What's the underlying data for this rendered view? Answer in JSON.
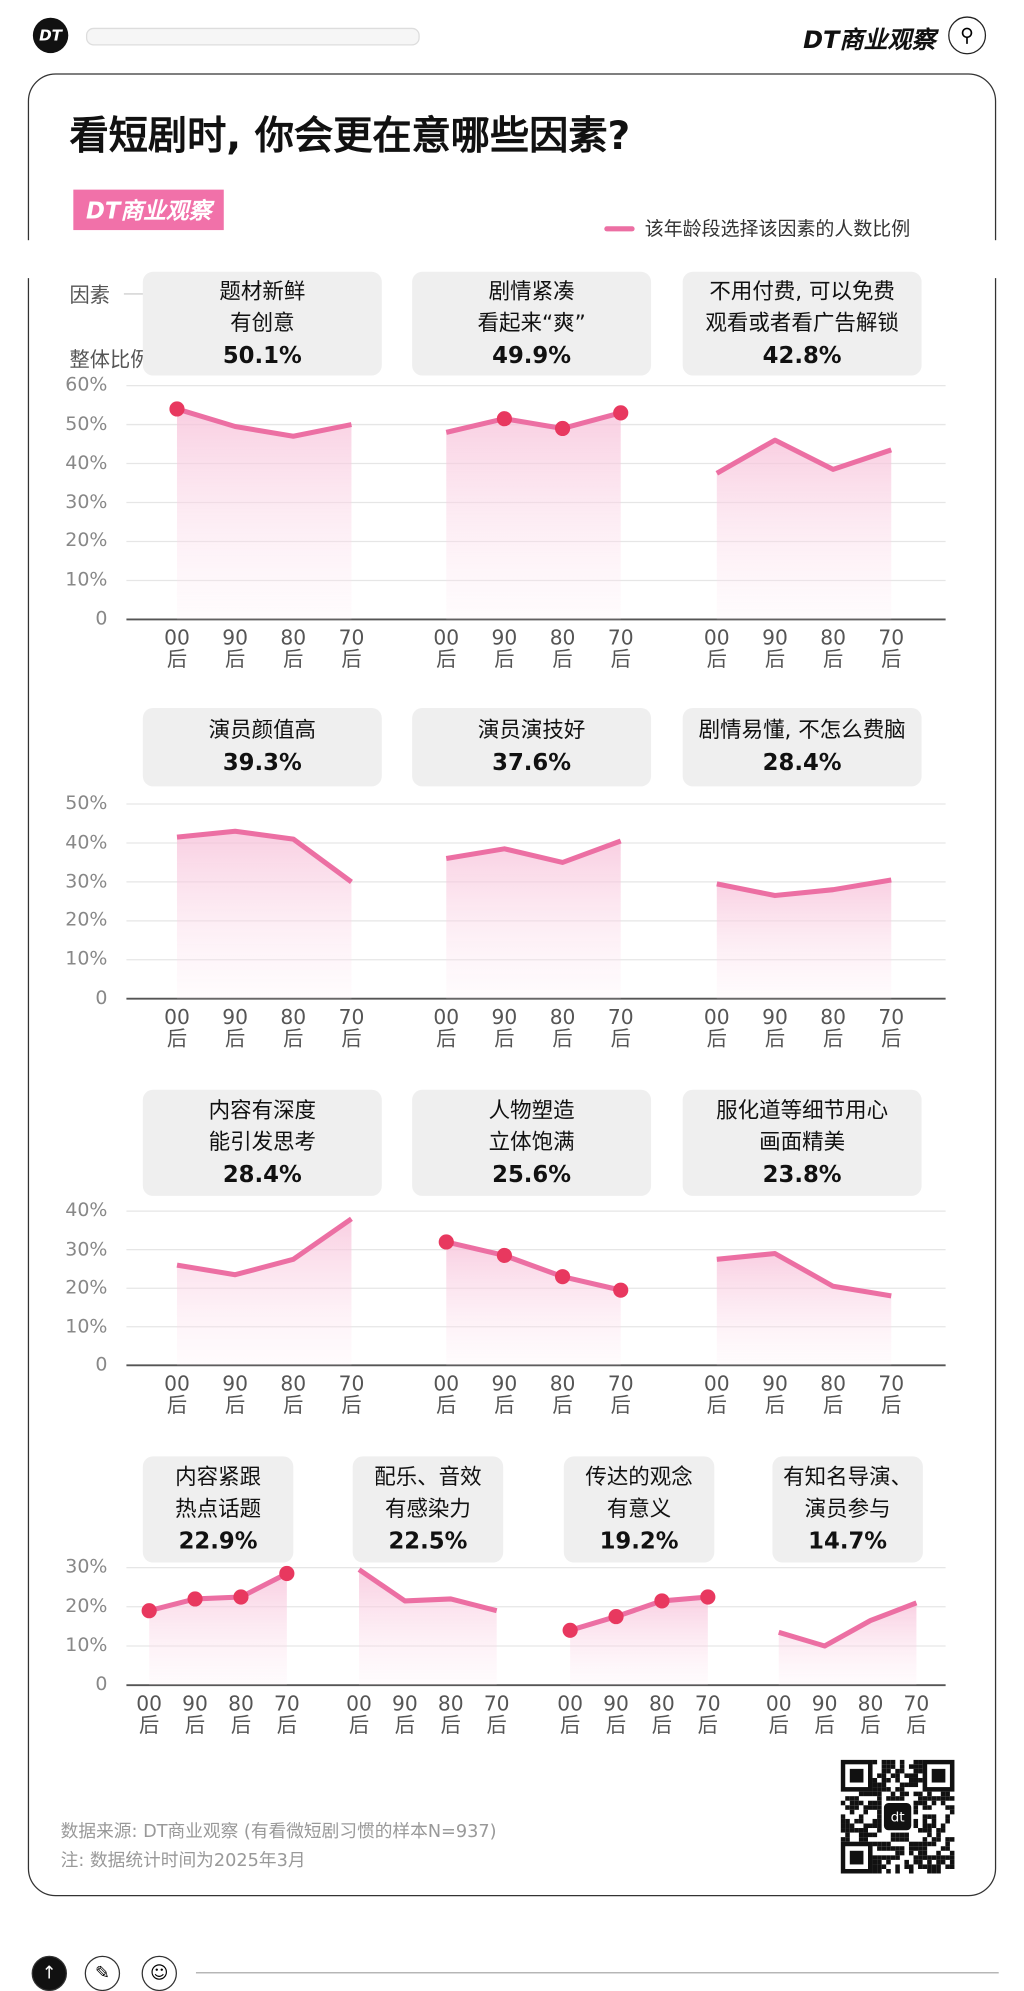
{
  "topbar": {
    "logo": "DT",
    "brand": "DT商业观察",
    "search_icon": "search-icon"
  },
  "title": "看短剧时, 你会更在意哪些因素?",
  "badge": "DT商业观察",
  "legend": "该年龄段选择该因素的人数比例",
  "row_labels": {
    "factor": "因素",
    "overall": "整体比例"
  },
  "colors": {
    "line": "#ec6fa3",
    "dot": "#e8385f",
    "badge": "#f171a9"
  },
  "chart_data": {
    "type": "line",
    "title": "看短剧时, 你会更在意哪些因素?",
    "legend": "该年龄段选择该因素的人数比例",
    "categories": [
      "00后",
      "90后",
      "80后",
      "70后"
    ],
    "rows": [
      {
        "ymax": 60,
        "yticks": [
          "60%",
          "50%",
          "40%",
          "30%",
          "20%",
          "10%",
          "0"
        ],
        "charts": [
          {
            "factor": "题材新鲜\n有创意",
            "overall": "50.1%",
            "values": [
              54,
              49.5,
              47,
              50
            ],
            "highlighted": [
              true,
              false,
              false,
              false
            ]
          },
          {
            "factor": "剧情紧凑\n看起来“爽”",
            "overall": "49.9%",
            "values": [
              48,
              51.5,
              49,
              53
            ],
            "highlighted": [
              false,
              true,
              true,
              true
            ]
          },
          {
            "factor": "不用付费, 可以免费\n观看或者看广告解锁",
            "overall": "42.8%",
            "values": [
              37.5,
              46,
              38.5,
              43.5
            ],
            "highlighted": [
              false,
              false,
              false,
              false
            ]
          }
        ]
      },
      {
        "ymax": 50,
        "yticks": [
          "50%",
          "40%",
          "30%",
          "20%",
          "10%",
          "0"
        ],
        "charts": [
          {
            "factor": "演员颜值高",
            "overall": "39.3%",
            "values": [
              41.5,
              43,
              41,
              30
            ],
            "highlighted": [
              false,
              false,
              false,
              false
            ]
          },
          {
            "factor": "演员演技好",
            "overall": "37.6%",
            "values": [
              36,
              38.5,
              35,
              40.5
            ],
            "highlighted": [
              false,
              false,
              false,
              false
            ]
          },
          {
            "factor": "剧情易懂, 不怎么费脑",
            "overall": "28.4%",
            "values": [
              29.5,
              26.5,
              28,
              30.5
            ],
            "highlighted": [
              false,
              false,
              false,
              false
            ]
          }
        ]
      },
      {
        "ymax": 40,
        "yticks": [
          "40%",
          "30%",
          "20%",
          "10%",
          "0"
        ],
        "charts": [
          {
            "factor": "内容有深度\n能引发思考",
            "overall": "28.4%",
            "values": [
              26,
              23.5,
              27.5,
              38
            ],
            "highlighted": [
              false,
              false,
              false,
              false
            ]
          },
          {
            "factor": "人物塑造\n立体饱满",
            "overall": "25.6%",
            "values": [
              32,
              28.5,
              23,
              19.5
            ],
            "highlighted": [
              true,
              true,
              true,
              true
            ]
          },
          {
            "factor": "服化道等细节用心\n画面精美",
            "overall": "23.8%",
            "values": [
              27.5,
              29,
              20.5,
              18
            ],
            "highlighted": [
              false,
              false,
              false,
              false
            ]
          }
        ]
      },
      {
        "ymax": 30,
        "yticks": [
          "30%",
          "20%",
          "10%",
          "0"
        ],
        "charts": [
          {
            "factor": "内容紧跟\n热点话题",
            "overall": "22.9%",
            "values": [
              19,
              22,
              22.5,
              28.5
            ],
            "highlighted": [
              true,
              true,
              true,
              true
            ]
          },
          {
            "factor": "配乐、音效\n有感染力",
            "overall": "22.5%",
            "values": [
              29.5,
              21.5,
              22,
              19
            ],
            "highlighted": [
              false,
              false,
              false,
              false
            ]
          },
          {
            "factor": "传达的观念\n有意义",
            "overall": "19.2%",
            "values": [
              14,
              17.5,
              21.5,
              22.5
            ],
            "highlighted": [
              true,
              true,
              true,
              true
            ]
          },
          {
            "factor": "有知名导演、\n演员参与",
            "overall": "14.7%",
            "values": [
              13.5,
              10,
              16.5,
              21
            ],
            "highlighted": [
              false,
              false,
              false,
              false
            ]
          }
        ]
      }
    ]
  },
  "footer": {
    "source": "数据来源: DT商业观察 (有看微短剧习惯的样本N=937)",
    "note": "注: 数据统计时间为2025年3月",
    "qr_center": "dt"
  }
}
